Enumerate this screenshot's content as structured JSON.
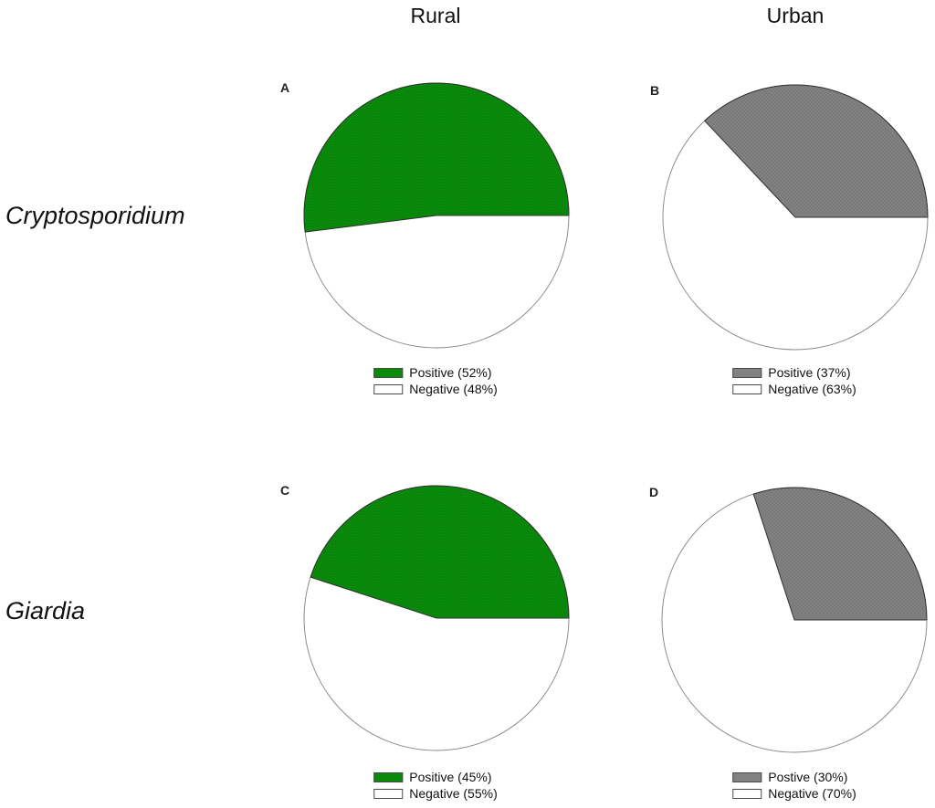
{
  "page_background": "#ffffff",
  "column_headers": [
    {
      "label": "Rural"
    },
    {
      "label": "Urban"
    }
  ],
  "row_headers": [
    {
      "label": "Cryptosporidium"
    },
    {
      "label": "Giardia"
    }
  ],
  "colors": {
    "positive_green": "#0a8a0a",
    "positive_gray": "#818181",
    "negative_white": "#ffffff",
    "circle_border": "#8c8c8c",
    "slice_border": "#303030"
  },
  "chart_data": [
    {
      "type": "pie",
      "panel": "A",
      "column": "Rural",
      "row": "Cryptosporidium",
      "start_angle_deg": 0,
      "direction": "counterclockwise",
      "legend_position": "bottom",
      "slices": [
        {
          "label": "Positive (52%)",
          "value": 52,
          "color": "#0a8a0a",
          "texture": "dots",
          "texture_color": "#064b06"
        },
        {
          "label": "Negative (48%)",
          "value": 48,
          "color": "#ffffff",
          "texture": "none"
        }
      ]
    },
    {
      "type": "pie",
      "panel": "B",
      "column": "Urban",
      "row": "Cryptosporidium",
      "start_angle_deg": 0,
      "direction": "counterclockwise",
      "legend_position": "bottom",
      "slices": [
        {
          "label": "Positive (37%)",
          "value": 37,
          "color": "#818181",
          "texture": "crosshatch",
          "texture_color": "#6a6a6a"
        },
        {
          "label": "Negative (63%)",
          "value": 63,
          "color": "#ffffff",
          "texture": "none"
        }
      ]
    },
    {
      "type": "pie",
      "panel": "C",
      "column": "Rural",
      "row": "Giardia",
      "start_angle_deg": 0,
      "direction": "counterclockwise",
      "legend_position": "bottom",
      "slices": [
        {
          "label": "Positive (45%)",
          "value": 45,
          "color": "#0a8a0a",
          "texture": "dots",
          "texture_color": "#064b06"
        },
        {
          "label": "Negative (55%)",
          "value": 55,
          "color": "#ffffff",
          "texture": "none"
        }
      ]
    },
    {
      "type": "pie",
      "panel": "D",
      "column": "Urban",
      "row": "Giardia",
      "start_angle_deg": 0,
      "direction": "counterclockwise",
      "legend_position": "bottom",
      "slices": [
        {
          "label": "Postive (30%)",
          "value": 30,
          "color": "#818181",
          "texture": "crosshatch",
          "texture_color": "#6a6a6a"
        },
        {
          "label": "Negative (70%)",
          "value": 70,
          "color": "#ffffff",
          "texture": "none"
        }
      ]
    }
  ]
}
